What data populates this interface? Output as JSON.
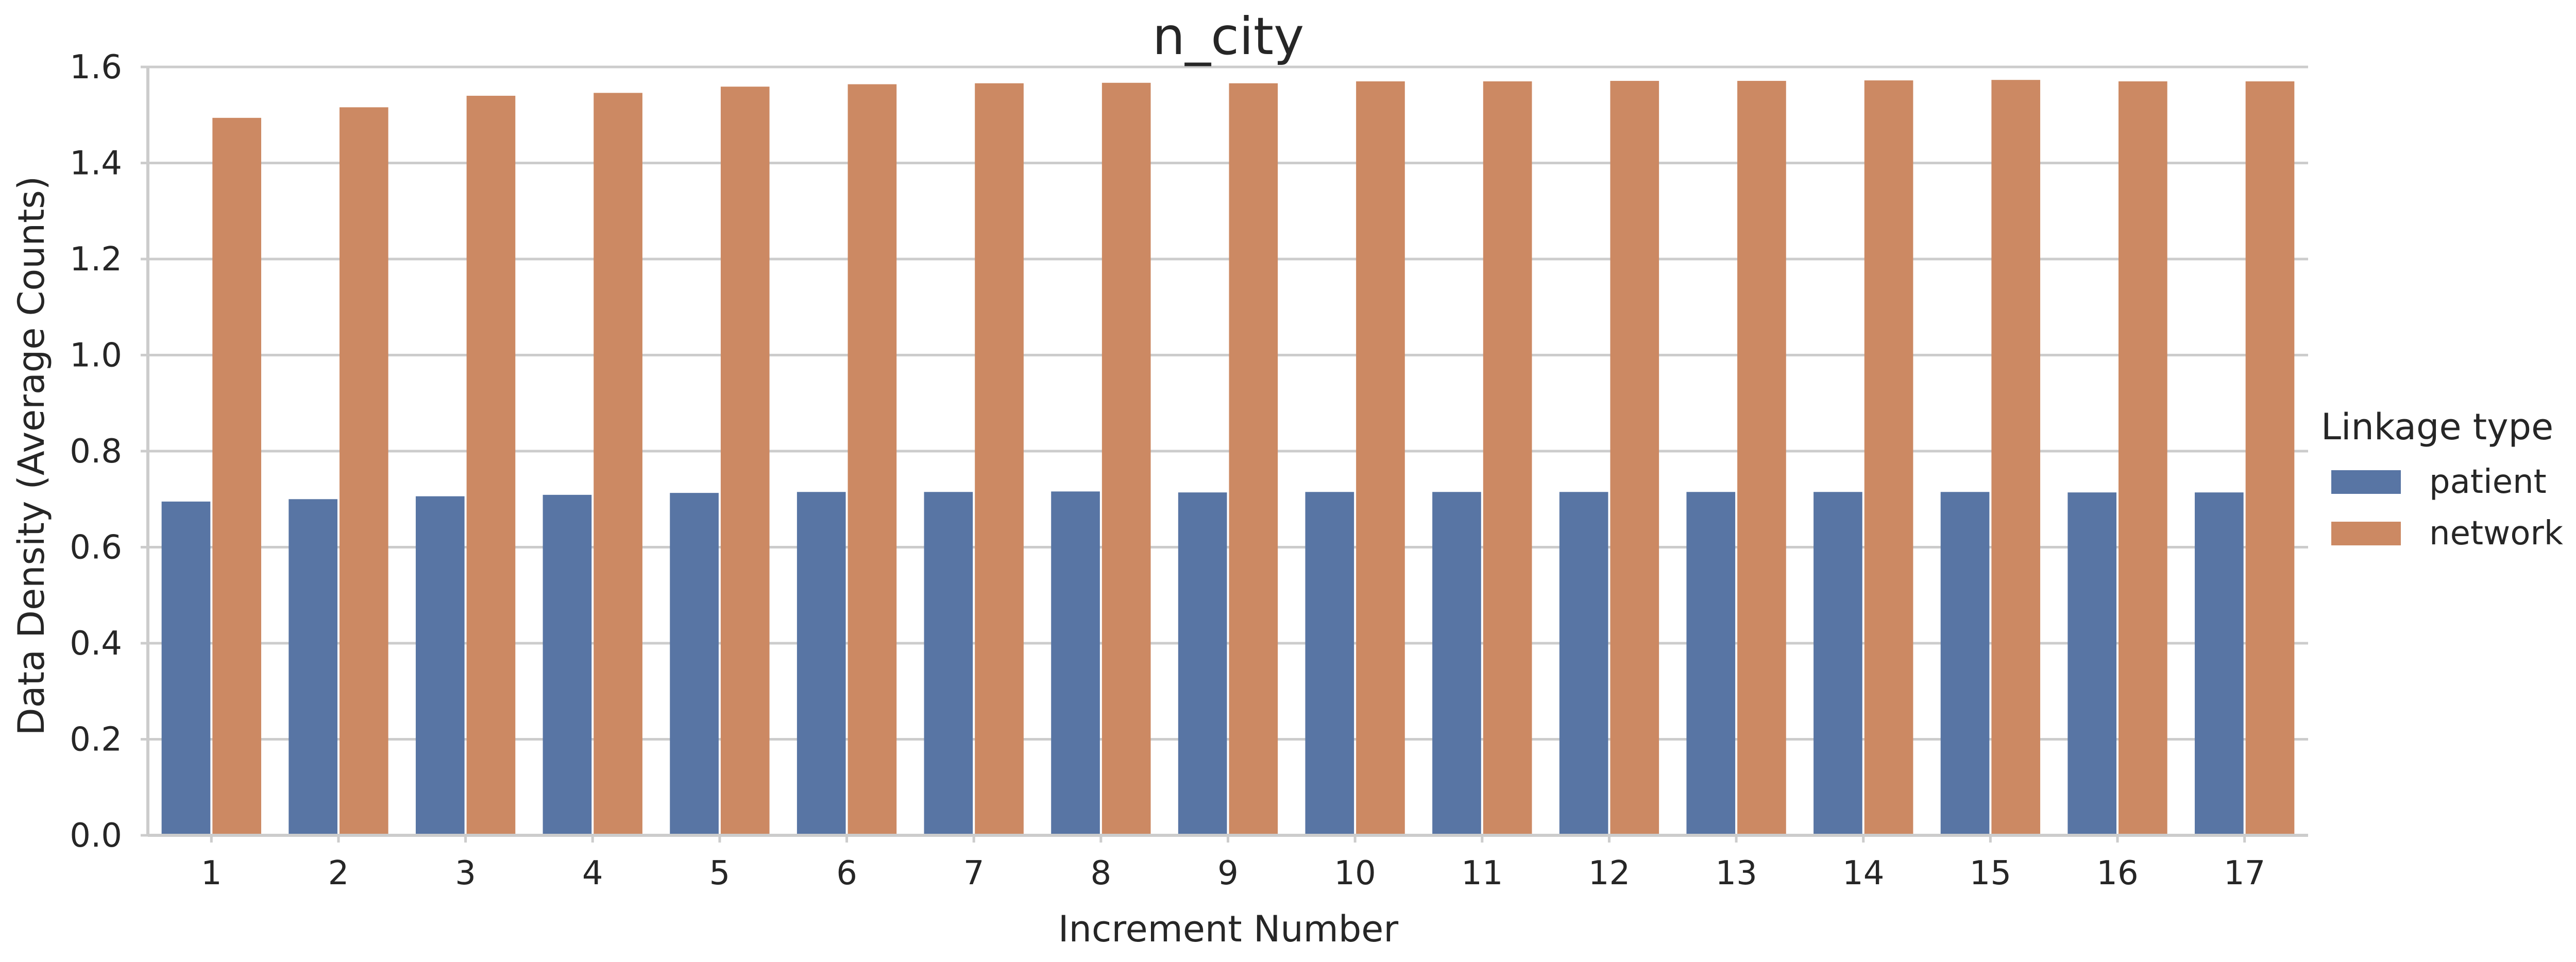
{
  "chart_data": {
    "type": "bar",
    "title": "n_city",
    "xlabel": "Increment Number",
    "ylabel": "Data Density (Average Counts)",
    "ylim": [
      0,
      1.6
    ],
    "yticks": [
      "0.0",
      "0.2",
      "0.4",
      "0.6",
      "0.8",
      "1.0",
      "1.2",
      "1.4",
      "1.6"
    ],
    "grid": "horizontal",
    "legend_position": "right",
    "legend_title": "Linkage type",
    "categories": [
      "1",
      "2",
      "3",
      "4",
      "5",
      "6",
      "7",
      "8",
      "9",
      "10",
      "11",
      "12",
      "13",
      "14",
      "15",
      "16",
      "17"
    ],
    "series": [
      {
        "name": "patient",
        "color": "#5875A4",
        "values": [
          0.695,
          0.7,
          0.706,
          0.709,
          0.713,
          0.715,
          0.715,
          0.716,
          0.714,
          0.715,
          0.715,
          0.715,
          0.715,
          0.715,
          0.715,
          0.714,
          0.714
        ]
      },
      {
        "name": "network",
        "color": "#CC8963",
        "values": [
          1.494,
          1.516,
          1.54,
          1.546,
          1.559,
          1.564,
          1.566,
          1.567,
          1.566,
          1.57,
          1.57,
          1.571,
          1.571,
          1.572,
          1.573,
          1.57,
          1.57
        ]
      }
    ]
  }
}
